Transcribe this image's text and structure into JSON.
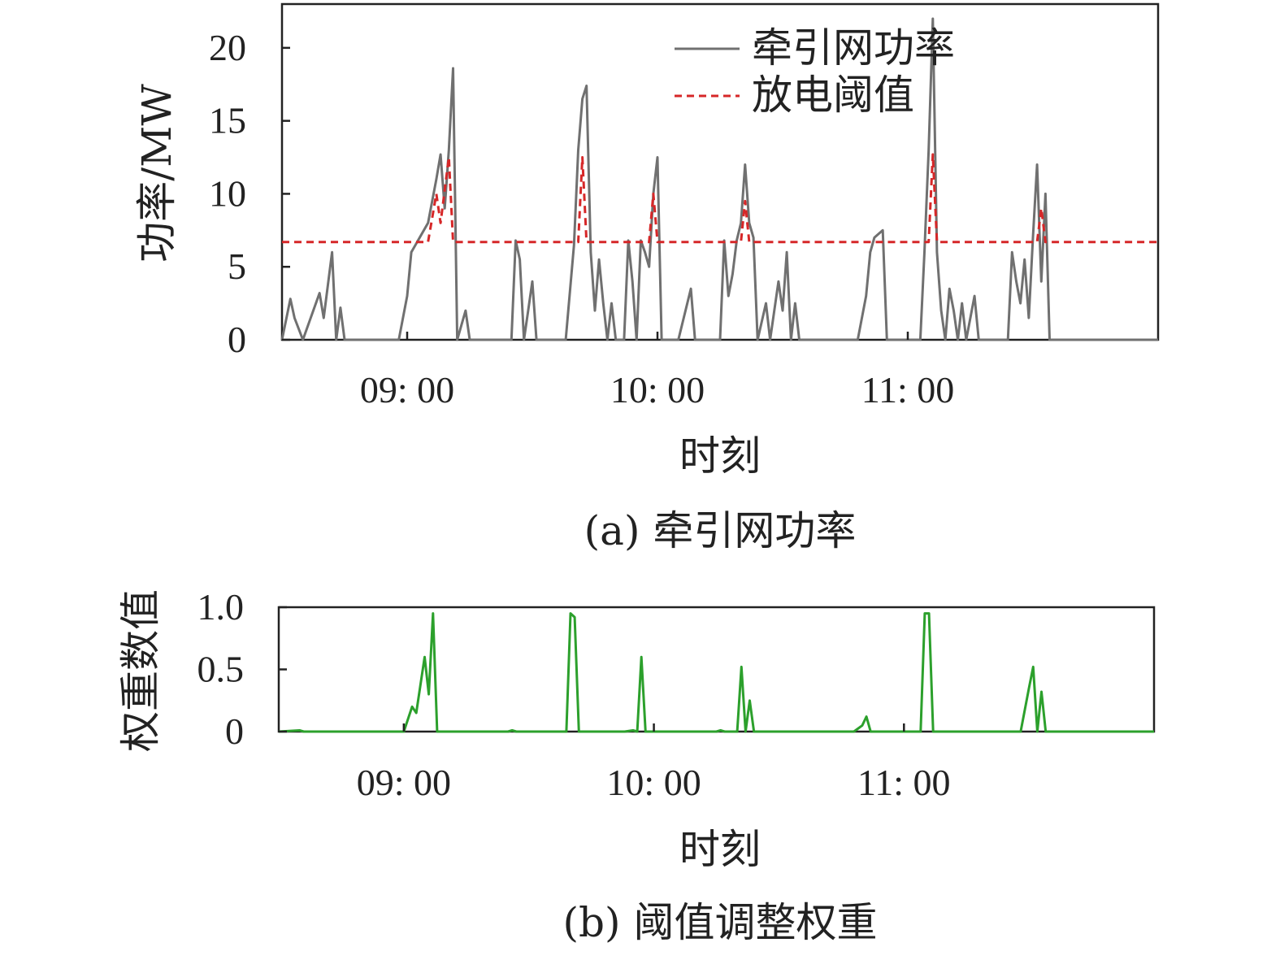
{
  "chart_data": [
    {
      "type": "line",
      "caption": "(a) 牵引网功率",
      "xlabel": "时刻",
      "ylabel": "功率/MW",
      "xlim": [
        "08:30",
        "12:00"
      ],
      "ylim": [
        0,
        23
      ],
      "x_ticks": [
        "09: 00",
        "10: 00",
        "11: 00"
      ],
      "y_ticks": [
        "0",
        "5",
        "10",
        "15",
        "20"
      ],
      "legend_position": "top-right",
      "series": [
        {
          "name": "牵引网功率",
          "color": "#707070",
          "points": [
            [
              "08:30",
              0
            ],
            [
              "08:32",
              2.8
            ],
            [
              "08:33",
              1.5
            ],
            [
              "08:35",
              0
            ],
            [
              "08:39",
              3.2
            ],
            [
              "08:40",
              1.5
            ],
            [
              "08:42",
              6.0
            ],
            [
              "08:43",
              0
            ],
            [
              "08:44",
              2.2
            ],
            [
              "08:45",
              0
            ],
            [
              "08:58",
              0
            ],
            [
              "09:00",
              3.0
            ],
            [
              "09:01",
              6.0
            ],
            [
              "09:03",
              7.0
            ],
            [
              "09:05",
              8.0
            ],
            [
              "09:07",
              11.0
            ],
            [
              "09:08",
              12.7
            ],
            [
              "09:09",
              9.0
            ],
            [
              "09:10",
              13.0
            ],
            [
              "09:11",
              18.6
            ],
            [
              "09:12",
              0
            ],
            [
              "09:14",
              2.0
            ],
            [
              "09:15",
              0
            ],
            [
              "09:25",
              0
            ],
            [
              "09:26",
              6.8
            ],
            [
              "09:27",
              5.5
            ],
            [
              "09:28",
              0
            ],
            [
              "09:29",
              2.0
            ],
            [
              "09:30",
              4.0
            ],
            [
              "09:31",
              0
            ],
            [
              "09:38",
              0
            ],
            [
              "09:40",
              6.5
            ],
            [
              "09:41",
              13.0
            ],
            [
              "09:42",
              16.5
            ],
            [
              "09:43",
              17.4
            ],
            [
              "09:44",
              6.0
            ],
            [
              "09:45",
              2.0
            ],
            [
              "09:46",
              5.5
            ],
            [
              "09:47",
              2.5
            ],
            [
              "09:48",
              0
            ],
            [
              "09:49",
              2.5
            ],
            [
              "09:50",
              0
            ],
            [
              "09:52",
              0
            ],
            [
              "09:53",
              6.8
            ],
            [
              "09:54",
              4.0
            ],
            [
              "09:55",
              0
            ],
            [
              "09:56",
              6.8
            ],
            [
              "09:57",
              6.0
            ],
            [
              "09:58",
              5.0
            ],
            [
              "09:59",
              10.0
            ],
            [
              "10:00",
              12.5
            ],
            [
              "10:01",
              0
            ],
            [
              "10:05",
              0
            ],
            [
              "10:08",
              3.5
            ],
            [
              "10:09",
              0
            ],
            [
              "10:15",
              0
            ],
            [
              "10:16",
              6.8
            ],
            [
              "10:17",
              3.0
            ],
            [
              "10:18",
              4.5
            ],
            [
              "10:19",
              6.8
            ],
            [
              "10:20",
              8.0
            ],
            [
              "10:21",
              12.0
            ],
            [
              "10:22",
              8.0
            ],
            [
              "10:23",
              7.0
            ],
            [
              "10:24",
              0
            ],
            [
              "10:26",
              2.5
            ],
            [
              "10:27",
              0
            ],
            [
              "10:29",
              4.0
            ],
            [
              "10:30",
              2.0
            ],
            [
              "10:31",
              6.0
            ],
            [
              "10:32",
              0
            ],
            [
              "10:33",
              2.5
            ],
            [
              "10:34",
              0
            ],
            [
              "10:48",
              0
            ],
            [
              "10:50",
              3.0
            ],
            [
              "10:51",
              6.0
            ],
            [
              "10:52",
              7.0
            ],
            [
              "10:54",
              7.5
            ],
            [
              "10:55",
              0
            ],
            [
              "11:03",
              0
            ],
            [
              "11:04",
              6.0
            ],
            [
              "11:05",
              13.0
            ],
            [
              "11:06",
              22.0
            ],
            [
              "11:07",
              6.0
            ],
            [
              "11:08",
              2.0
            ],
            [
              "11:09",
              0
            ],
            [
              "11:10",
              3.5
            ],
            [
              "11:11",
              2.0
            ],
            [
              "11:12",
              0
            ],
            [
              "11:13",
              2.5
            ],
            [
              "11:14",
              0
            ],
            [
              "11:16",
              3.0
            ],
            [
              "11:17",
              0
            ],
            [
              "11:24",
              0
            ],
            [
              "11:25",
              6.0
            ],
            [
              "11:26",
              4.0
            ],
            [
              "11:27",
              2.5
            ],
            [
              "11:28",
              5.5
            ],
            [
              "11:29",
              1.5
            ],
            [
              "11:30",
              7.0
            ],
            [
              "11:31",
              12.0
            ],
            [
              "11:32",
              4.0
            ],
            [
              "11:33",
              10.0
            ],
            [
              "11:34",
              0
            ],
            [
              "12:00",
              0
            ]
          ]
        },
        {
          "name": "放电阈值",
          "color": "#d62728",
          "dashed": true,
          "points": [
            [
              "08:30",
              6.7
            ],
            [
              "09:05",
              6.7
            ],
            [
              "09:07",
              10.0
            ],
            [
              "09:08",
              8.0
            ],
            [
              "09:10",
              12.5
            ],
            [
              "09:11",
              6.7
            ],
            [
              "09:41",
              6.7
            ],
            [
              "09:42",
              12.5
            ],
            [
              "09:43",
              6.7
            ],
            [
              "09:58",
              6.7
            ],
            [
              "09:59",
              10.0
            ],
            [
              "10:00",
              6.7
            ],
            [
              "10:20",
              6.7
            ],
            [
              "10:21",
              9.5
            ],
            [
              "10:22",
              6.7
            ],
            [
              "11:05",
              6.7
            ],
            [
              "11:06",
              12.7
            ],
            [
              "11:07",
              6.7
            ],
            [
              "11:31",
              6.7
            ],
            [
              "11:32",
              9.0
            ],
            [
              "11:33",
              6.7
            ],
            [
              "12:00",
              6.7
            ]
          ]
        }
      ]
    },
    {
      "type": "line",
      "caption": "(b) 阈值调整权重",
      "xlabel": "时刻",
      "ylabel": "权重数值",
      "xlim": [
        "08:30",
        "12:00"
      ],
      "ylim": [
        0,
        1
      ],
      "x_ticks": [
        "09: 00",
        "10: 00",
        "11: 00"
      ],
      "y_ticks": [
        "0",
        "0.5",
        "1.0"
      ],
      "series": [
        {
          "color": "#2ca02c",
          "points": [
            [
              "08:30",
              0
            ],
            [
              "08:35",
              0.01
            ],
            [
              "08:36",
              0
            ],
            [
              "09:00",
              0
            ],
            [
              "09:02",
              0.2
            ],
            [
              "09:03",
              0.15
            ],
            [
              "09:05",
              0.6
            ],
            [
              "09:06",
              0.3
            ],
            [
              "09:07",
              0.95
            ],
            [
              "09:08",
              0
            ],
            [
              "09:25",
              0
            ],
            [
              "09:26",
              0.01
            ],
            [
              "09:27",
              0
            ],
            [
              "09:39",
              0
            ],
            [
              "09:40",
              0.95
            ],
            [
              "09:41",
              0.92
            ],
            [
              "09:42",
              0
            ],
            [
              "09:53",
              0
            ],
            [
              "09:55",
              0.01
            ],
            [
              "09:56",
              0
            ],
            [
              "09:57",
              0.6
            ],
            [
              "09:58",
              0
            ],
            [
              "10:15",
              0
            ],
            [
              "10:16",
              0.01
            ],
            [
              "10:17",
              0
            ],
            [
              "10:20",
              0
            ],
            [
              "10:21",
              0.52
            ],
            [
              "10:22",
              0
            ],
            [
              "10:23",
              0.25
            ],
            [
              "10:24",
              0
            ],
            [
              "10:48",
              0
            ],
            [
              "10:50",
              0.05
            ],
            [
              "10:51",
              0.12
            ],
            [
              "10:52",
              0
            ],
            [
              "11:04",
              0
            ],
            [
              "11:05",
              0.95
            ],
            [
              "11:06",
              0.95
            ],
            [
              "11:07",
              0
            ],
            [
              "11:28",
              0
            ],
            [
              "11:30",
              0.35
            ],
            [
              "11:31",
              0.52
            ],
            [
              "11:32",
              0
            ],
            [
              "11:33",
              0.32
            ],
            [
              "11:34",
              0
            ],
            [
              "12:00",
              0
            ]
          ]
        }
      ]
    }
  ]
}
